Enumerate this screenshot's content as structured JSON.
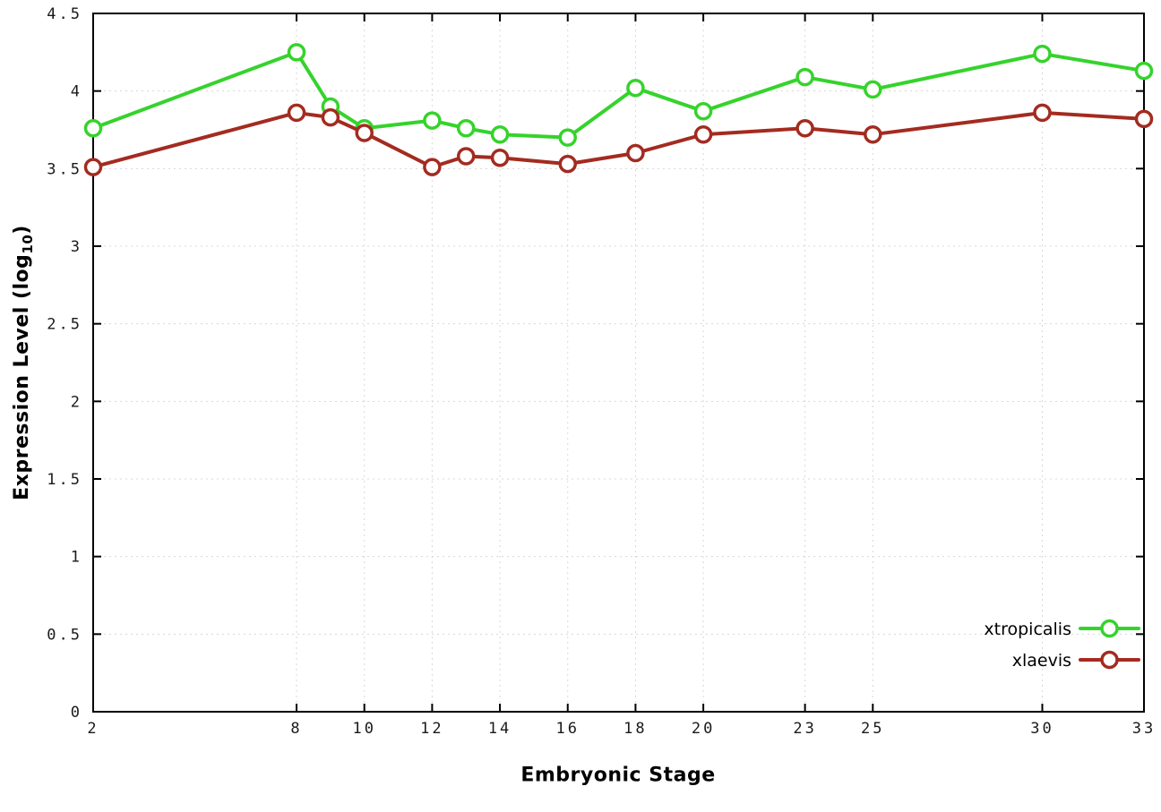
{
  "chart_data": {
    "type": "line",
    "title": "",
    "xlabel": "Embryonic Stage",
    "ylabel": "Expression Level (log10)",
    "ylabel_parts": {
      "prefix": "Expression Level (log",
      "sub": "10",
      "suffix": ")"
    },
    "xlim": [
      2,
      33
    ],
    "ylim": [
      0,
      4.5
    ],
    "xticks": [
      2,
      8,
      10,
      12,
      14,
      16,
      18,
      20,
      23,
      25,
      30,
      33
    ],
    "yticks": [
      0,
      0.5,
      1,
      1.5,
      2,
      2.5,
      3,
      3.5,
      4,
      4.5
    ],
    "grid": true,
    "legend_position": "bottom-right",
    "x": [
      2,
      8,
      9,
      10,
      12,
      13,
      14,
      16,
      18,
      20,
      23,
      25,
      30,
      33
    ],
    "series": [
      {
        "name": "xtropicalis",
        "color": "#35d32c",
        "values": [
          3.76,
          4.25,
          3.9,
          3.76,
          3.81,
          3.76,
          3.72,
          3.7,
          4.02,
          3.87,
          4.09,
          4.01,
          4.24,
          4.13
        ]
      },
      {
        "name": "xlaevis",
        "color": "#a32b20",
        "values": [
          3.51,
          3.86,
          3.83,
          3.73,
          3.51,
          3.58,
          3.57,
          3.53,
          3.6,
          3.72,
          3.76,
          3.72,
          3.86,
          3.82
        ]
      }
    ],
    "colors": {
      "grid": "#d8d8d8",
      "border": "#000000",
      "background": "#ffffff"
    }
  }
}
